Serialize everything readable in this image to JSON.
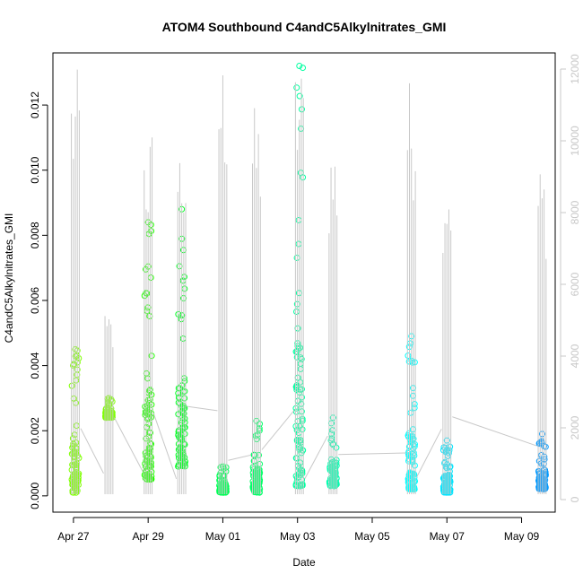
{
  "chart_data": {
    "type": "scatter",
    "title": "ATOM4 Southbound C4andC5Alkylnitrates_GMI",
    "xlabel": "Date",
    "ylabel": "C4andC5Alkylnitrates_GMI",
    "x_ticks": [
      "Apr 27",
      "Apr 29",
      "May 01",
      "May 03",
      "May 05",
      "May 07",
      "May 09"
    ],
    "y_ticks": [
      "0.000",
      "0.002",
      "0.004",
      "0.006",
      "0.008",
      "0.010",
      "0.012"
    ],
    "y2_ticks": [
      "0",
      "2000",
      "4000",
      "6000",
      "8000",
      "10000",
      "12000"
    ],
    "x_range_days": [
      -0.55,
      12.9
    ],
    "ylim": [
      -0.0005,
      0.0136
    ],
    "y2lim": [
      -350,
      12450
    ],
    "secondary_axis_color": "#c8c8c8",
    "flight_segments": [
      {
        "day": 0.05,
        "ymin": 0.0001,
        "ymax": 0.0045,
        "color": "#7fff00",
        "y2max": 12000
      },
      {
        "day": 0.95,
        "ymin": 0.0024,
        "ymax": 0.003,
        "color": "#7fff00",
        "y2max": 5300
      },
      {
        "day": 2.0,
        "ymin": 0.0005,
        "ymax": 0.0084,
        "color": "#22ff00",
        "y2max": 10500
      },
      {
        "day": 2.9,
        "ymin": 0.0009,
        "ymax": 0.0088,
        "color": "#00ff22",
        "y2max": 10200
      },
      {
        "day": 4.0,
        "ymin": 0.0001,
        "ymax": 0.0009,
        "color": "#00ff55",
        "y2max": 12500
      },
      {
        "day": 4.9,
        "ymin": 0.0001,
        "ymax": 0.0023,
        "color": "#00ff66",
        "y2max": 11000
      },
      {
        "day": 6.05,
        "ymin": 0.0003,
        "ymax": 0.0132,
        "color": "#00ffa0",
        "y2max": 12300
      },
      {
        "day": 6.95,
        "ymin": 0.0003,
        "ymax": 0.0024,
        "color": "#00ffb0",
        "y2max": 10200
      },
      {
        "day": 9.05,
        "ymin": 0.0002,
        "ymax": 0.0049,
        "color": "#00ffff",
        "y2max": 11800
      },
      {
        "day": 10.0,
        "ymin": 0.0001,
        "ymax": 0.0017,
        "color": "#00e5ff",
        "y2max": 9800
      },
      {
        "day": 12.55,
        "ymin": 0.0002,
        "ymax": 0.0019,
        "color": "#0099ff",
        "y2max": 9500
      }
    ]
  }
}
